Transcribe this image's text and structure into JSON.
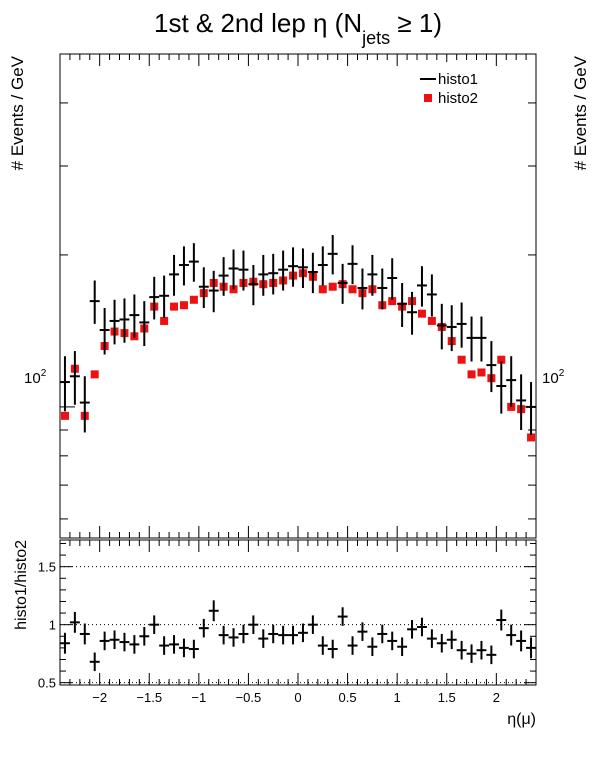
{
  "chart_data": [
    {
      "type": "scatter",
      "title": "1st & 2nd lep η (N",
      "title_sub": "jets",
      "title_tail": " ≥ 1)",
      "ylabel": "# Events / GeV",
      "ylabel_right": "# Events / GeV",
      "yscale": "log",
      "ylim": [
        55,
        500
      ],
      "xlim": [
        -2.4,
        2.4
      ],
      "ytick_label": "10",
      "ytick_label_exp": "2",
      "legend": {
        "placement": "top-right",
        "entries": [
          "histo1",
          "histo2"
        ]
      },
      "x": [
        -2.35,
        -2.25,
        -2.15,
        -2.05,
        -1.95,
        -1.85,
        -1.75,
        -1.65,
        -1.55,
        -1.45,
        -1.35,
        -1.25,
        -1.15,
        -1.05,
        -0.95,
        -0.85,
        -0.75,
        -0.65,
        -0.55,
        -0.45,
        -0.35,
        -0.25,
        -0.15,
        -0.05,
        0.05,
        0.15,
        0.25,
        0.35,
        0.45,
        0.55,
        0.65,
        0.75,
        0.85,
        0.95,
        1.05,
        1.15,
        1.25,
        1.35,
        1.45,
        1.55,
        1.65,
        1.75,
        1.85,
        1.95,
        2.05,
        2.15,
        2.25,
        2.35
      ],
      "series": [
        {
          "name": "histo1",
          "marker": "cross",
          "color": "#000000",
          "values": [
            112,
            115,
            102,
            162,
            142,
            148,
            149,
            152,
            147,
            165,
            166,
            183,
            191,
            194,
            173,
            170,
            182,
            188,
            187,
            175,
            183,
            184,
            187,
            190,
            189,
            185,
            191,
            201,
            176,
            192,
            172,
            183,
            172,
            180,
            160,
            154,
            174,
            167,
            145,
            144,
            146,
            137,
            137,
            121,
            110,
            113,
            103,
            100
          ],
          "errors": [
            14,
            14,
            13,
            16,
            15,
            15,
            15,
            15,
            15,
            16,
            16,
            17,
            17,
            17,
            16,
            16,
            16,
            17,
            17,
            16,
            17,
            17,
            17,
            17,
            17,
            17,
            17,
            18,
            16,
            17,
            16,
            17,
            16,
            17,
            16,
            15,
            16,
            16,
            15,
            15,
            15,
            14,
            14,
            14,
            13,
            13,
            13,
            12
          ]
        },
        {
          "name": "histo2",
          "marker": "square",
          "color": "#ee1111",
          "values": [
            96,
            119,
            96,
            116,
            132,
            141,
            140,
            138,
            143,
            158,
            148,
            158,
            159,
            163,
            168,
            176,
            173,
            171,
            176,
            177,
            175,
            176,
            178,
            182,
            184,
            181,
            171,
            173,
            175,
            171,
            168,
            171,
            159,
            162,
            158,
            162,
            153,
            148,
            144,
            135,
            124,
            116,
            117,
            114,
            124,
            100,
            99,
            87
          ]
        }
      ]
    },
    {
      "type": "scatter",
      "ylabel": "histo1/histo2",
      "xlabel": "η(μ)",
      "ylim": [
        0.48,
        1.73
      ],
      "xlim": [
        -2.4,
        2.4
      ],
      "xticks": [
        -2,
        -1.5,
        -1,
        -0.5,
        0,
        0.5,
        1,
        1.5,
        2
      ],
      "xtick_labels": [
        "−2",
        "−1.5",
        "−1",
        "−0.5",
        "0",
        "0.5",
        "1",
        "1.5",
        "2"
      ],
      "yticks": [
        0.5,
        1,
        1.5
      ],
      "ytick_labels": [
        "0.5",
        "1",
        "1.5"
      ],
      "grid": "horizontal dotted at 0.5, 1, 1.5",
      "x": [
        -2.35,
        -2.25,
        -2.15,
        -2.05,
        -1.95,
        -1.85,
        -1.75,
        -1.65,
        -1.55,
        -1.45,
        -1.35,
        -1.25,
        -1.15,
        -1.05,
        -0.95,
        -0.85,
        -0.75,
        -0.65,
        -0.55,
        -0.45,
        -0.35,
        -0.25,
        -0.15,
        -0.05,
        0.05,
        0.15,
        0.25,
        0.35,
        0.45,
        0.55,
        0.65,
        0.75,
        0.85,
        0.95,
        1.05,
        1.15,
        1.25,
        1.35,
        1.45,
        1.55,
        1.65,
        1.75,
        1.85,
        1.95,
        2.05,
        2.15,
        2.25,
        2.35
      ],
      "series": [
        {
          "name": "histo1/histo2",
          "marker": "cross",
          "color": "#000000",
          "values": [
            0.84,
            1.02,
            0.92,
            0.68,
            0.86,
            0.87,
            0.85,
            0.83,
            0.9,
            1.0,
            0.82,
            0.83,
            0.8,
            0.79,
            0.97,
            1.12,
            0.91,
            0.89,
            0.92,
            1.0,
            0.88,
            0.92,
            0.91,
            0.91,
            0.93,
            1.0,
            0.82,
            0.79,
            1.07,
            0.82,
            0.94,
            0.81,
            0.92,
            0.86,
            0.81,
            0.96,
            0.98,
            0.88,
            0.84,
            0.87,
            0.78,
            0.75,
            0.78,
            0.74,
            1.04,
            0.91,
            0.86,
            0.8
          ],
          "errors": [
            0.09,
            0.09,
            0.09,
            0.08,
            0.08,
            0.08,
            0.08,
            0.08,
            0.08,
            0.08,
            0.08,
            0.08,
            0.08,
            0.08,
            0.08,
            0.09,
            0.08,
            0.08,
            0.08,
            0.08,
            0.08,
            0.08,
            0.08,
            0.08,
            0.08,
            0.08,
            0.08,
            0.08,
            0.08,
            0.08,
            0.08,
            0.08,
            0.08,
            0.08,
            0.08,
            0.08,
            0.08,
            0.08,
            0.08,
            0.08,
            0.08,
            0.08,
            0.08,
            0.08,
            0.09,
            0.09,
            0.09,
            0.09
          ]
        }
      ]
    }
  ]
}
